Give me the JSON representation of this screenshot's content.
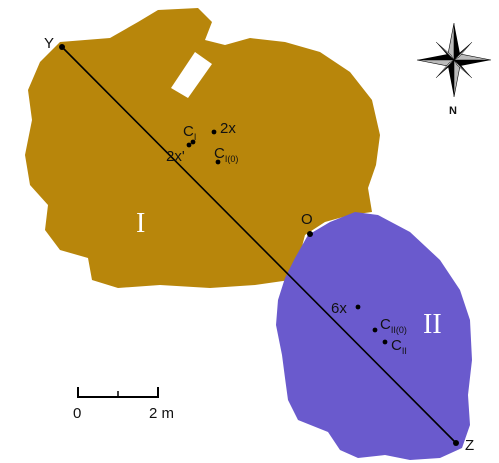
{
  "colors": {
    "region_one": "#b8860b",
    "region_two": "#6a5acd",
    "line": "#000000",
    "roman_text": "#ffffff"
  },
  "regions": {
    "one": {
      "label": "I"
    },
    "two": {
      "label": "II"
    }
  },
  "line_endpoints": {
    "y": "Y",
    "o": "O",
    "z": "Z"
  },
  "points": {
    "c1_main": "C",
    "c1_sub": "I",
    "c10_main": "C",
    "c10_sub": "I(0)",
    "two_x": "2x",
    "two_x_prime": "2x'",
    "six_x": "6x",
    "c20_main": "C",
    "c20_sub": "II(0)",
    "c2_main": "C",
    "c2_sub": "II"
  },
  "compass": {
    "north_label": "N",
    "icon": "compass-rose-icon"
  },
  "scale_bar": {
    "start_label": "0",
    "end_label": "2 m"
  }
}
